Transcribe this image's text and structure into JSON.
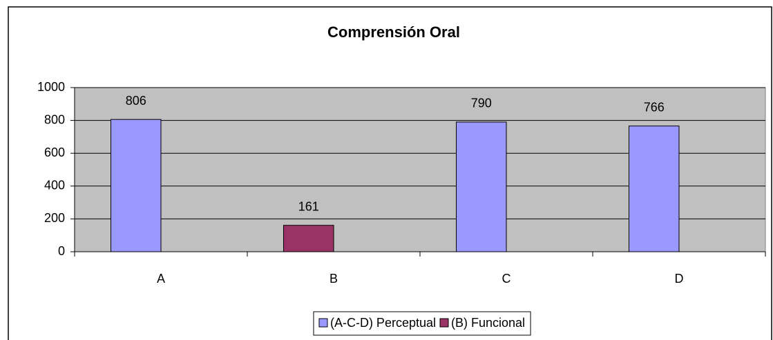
{
  "chart_data": {
    "type": "bar",
    "title": "Comprensión Oral",
    "categories": [
      "A",
      "B",
      "C",
      "D"
    ],
    "series": [
      {
        "name": "(A-C-D) Perceptual",
        "color": "#9999ff",
        "values": [
          806,
          null,
          790,
          766
        ]
      },
      {
        "name": "(B) Funcional",
        "color": "#993366",
        "values": [
          null,
          161,
          null,
          null
        ]
      }
    ],
    "ylim": [
      0,
      1000
    ],
    "yticks": [
      0,
      200,
      400,
      600,
      800,
      1000
    ],
    "grid": true,
    "plot_background": "#c0c0c0",
    "legend": "bottom"
  }
}
